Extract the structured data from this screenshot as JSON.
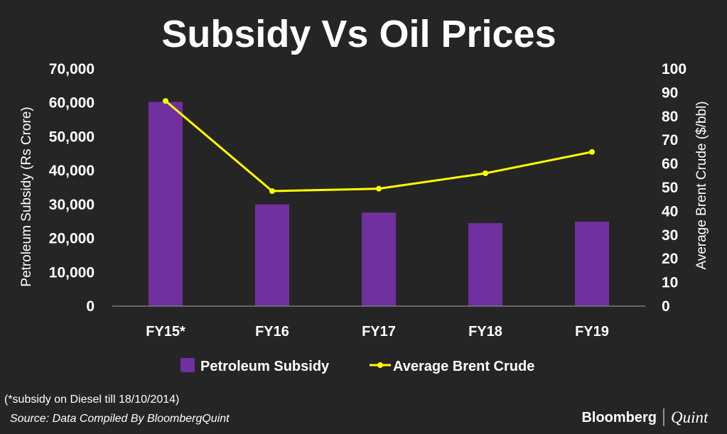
{
  "chart_data": {
    "type": "bar",
    "title": "Subsidy Vs Oil Prices",
    "categories": [
      "FY15*",
      "FY16",
      "FY17",
      "FY18",
      "FY19"
    ],
    "series": [
      {
        "name": "Petroleum Subsidy",
        "type": "bar",
        "axis": "left",
        "color": "#7030a0",
        "values": [
          60270,
          30000,
          27600,
          24500,
          24900
        ]
      },
      {
        "name": "Average Brent Crude",
        "type": "line",
        "axis": "right",
        "color": "#ffff00",
        "values": [
          86.5,
          48.5,
          49.5,
          56,
          65
        ]
      }
    ],
    "ylabel": "Petroleum Subsidy (Rs Crore)",
    "y2label": "Average Brent Crude ($/bbl)",
    "ylim": [
      0,
      70000
    ],
    "y2lim": [
      0,
      100
    ],
    "yticks": [
      "0",
      "10,000",
      "20,000",
      "30,000",
      "40,000",
      "50,000",
      "60,000",
      "70,000"
    ],
    "y2ticks": [
      "0",
      "10",
      "20",
      "30",
      "40",
      "50",
      "60",
      "70",
      "80",
      "90",
      "100"
    ],
    "grid": false,
    "legend_position": "bottom"
  },
  "footnote": "(*subsidy on Diesel till 18/10/2014)",
  "source": "Source: Data Compiled By BloombergQuint",
  "brand": {
    "name": "Bloomberg",
    "sub": "Quint"
  },
  "colors": {
    "background": "#252525",
    "bar": "#7030a0",
    "line": "#ffff00",
    "text": "#ffffff"
  }
}
